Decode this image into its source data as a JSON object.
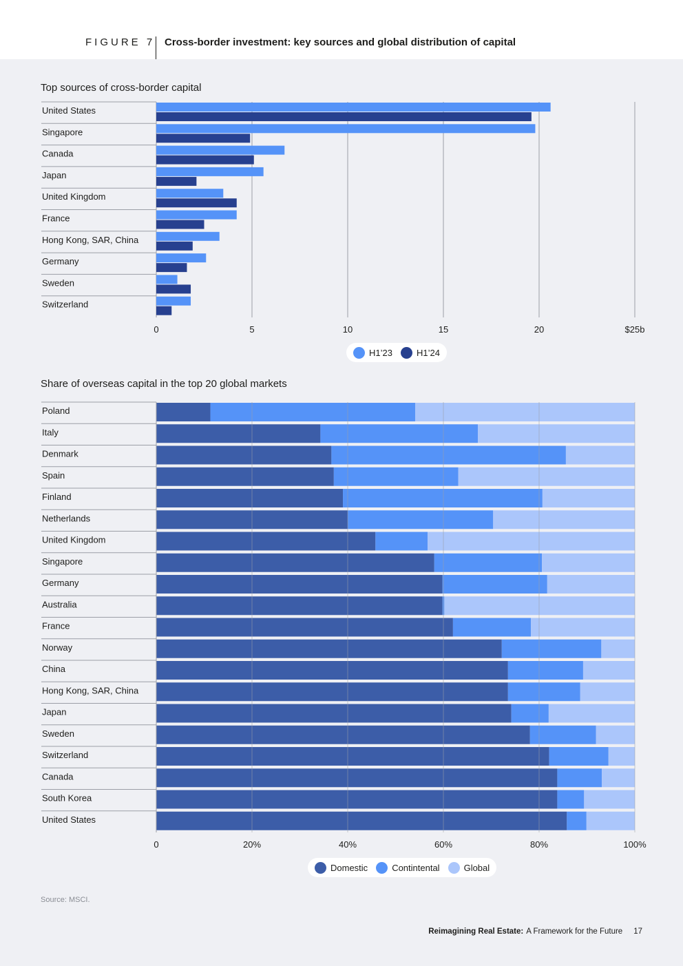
{
  "header": {
    "figure_label": "FIGURE 7",
    "title": "Cross-border investment: key sources and global distribution of capital"
  },
  "colors": {
    "h1_23": "#5593f8",
    "h1_24": "#27408f",
    "domestic": "#3c5da8",
    "continental": "#5593f8",
    "global": "#abc6fb",
    "grid": "#9b9ea6"
  },
  "chart_data": [
    {
      "type": "bar",
      "orientation": "horizontal",
      "title": "Top sources of cross-border capital",
      "categories": [
        "United States",
        "Singapore",
        "Canada",
        "Japan",
        "United Kingdom",
        "France",
        "Hong Kong, SAR, China",
        "Germany",
        "Sweden",
        "Switzerland"
      ],
      "series": [
        {
          "name": "H1’23",
          "values": [
            20.6,
            19.8,
            6.7,
            5.6,
            3.5,
            4.2,
            3.3,
            2.6,
            1.1,
            1.8
          ]
        },
        {
          "name": "H1’24",
          "values": [
            19.6,
            4.9,
            5.1,
            2.1,
            4.2,
            2.5,
            1.9,
            1.6,
            1.8,
            0.8
          ]
        }
      ],
      "xlim": [
        0,
        25
      ],
      "xticks": [
        "0",
        "5",
        "10",
        "15",
        "20",
        "$25b"
      ],
      "grid": true,
      "legend": "bottom-center"
    },
    {
      "type": "bar",
      "orientation": "horizontal",
      "stacked": true,
      "title": "Share of overseas capital in the top 20 global markets",
      "categories": [
        "Poland",
        "Italy",
        "Denmark",
        "Spain",
        "Finland",
        "Netherlands",
        "United Kingdom",
        "Singapore",
        "Germany",
        "Australia",
        "France",
        "Norway",
        "China",
        "Hong Kong, SAR, China",
        "Japan",
        "Sweden",
        "Switzerland",
        "Canada",
        "South Korea",
        "United States"
      ],
      "series": [
        {
          "name": "Domestic",
          "values": [
            11.3,
            34.3,
            36.6,
            37.1,
            39.0,
            40.0,
            45.8,
            58.1,
            59.8,
            59.8,
            62.0,
            72.2,
            73.5,
            73.5,
            74.2,
            78.1,
            82.1,
            83.8,
            83.8,
            85.8
          ]
        },
        {
          "name": "Contintental",
          "values": [
            42.8,
            32.9,
            49.0,
            26.0,
            41.7,
            30.4,
            10.9,
            22.5,
            21.9,
            0.4,
            16.3,
            20.8,
            15.7,
            15.1,
            7.8,
            13.8,
            12.4,
            9.3,
            5.6,
            4.1
          ]
        },
        {
          "name": "Global",
          "values": [
            45.9,
            32.8,
            14.4,
            36.9,
            19.3,
            29.6,
            43.3,
            19.4,
            18.3,
            39.8,
            21.7,
            7.0,
            10.8,
            11.4,
            18.0,
            8.1,
            5.5,
            6.9,
            10.6,
            10.1
          ]
        }
      ],
      "xlim": [
        0,
        100
      ],
      "xticks": [
        "0",
        "20%",
        "40%",
        "60%",
        "80%",
        "100%"
      ],
      "grid": true,
      "legend": "bottom-center"
    }
  ],
  "legend1": {
    "h1_23": "H1’23",
    "h1_24": "H1’24"
  },
  "legend2": {
    "domestic": "Domestic",
    "continental": "Contintental",
    "global": "Global"
  },
  "source": {
    "label": "Source:",
    "text": "MSCI."
  },
  "footer": {
    "report_bold": "Reimagining Real Estate:",
    "report_rest": "A Framework for the Future",
    "page": "17"
  }
}
